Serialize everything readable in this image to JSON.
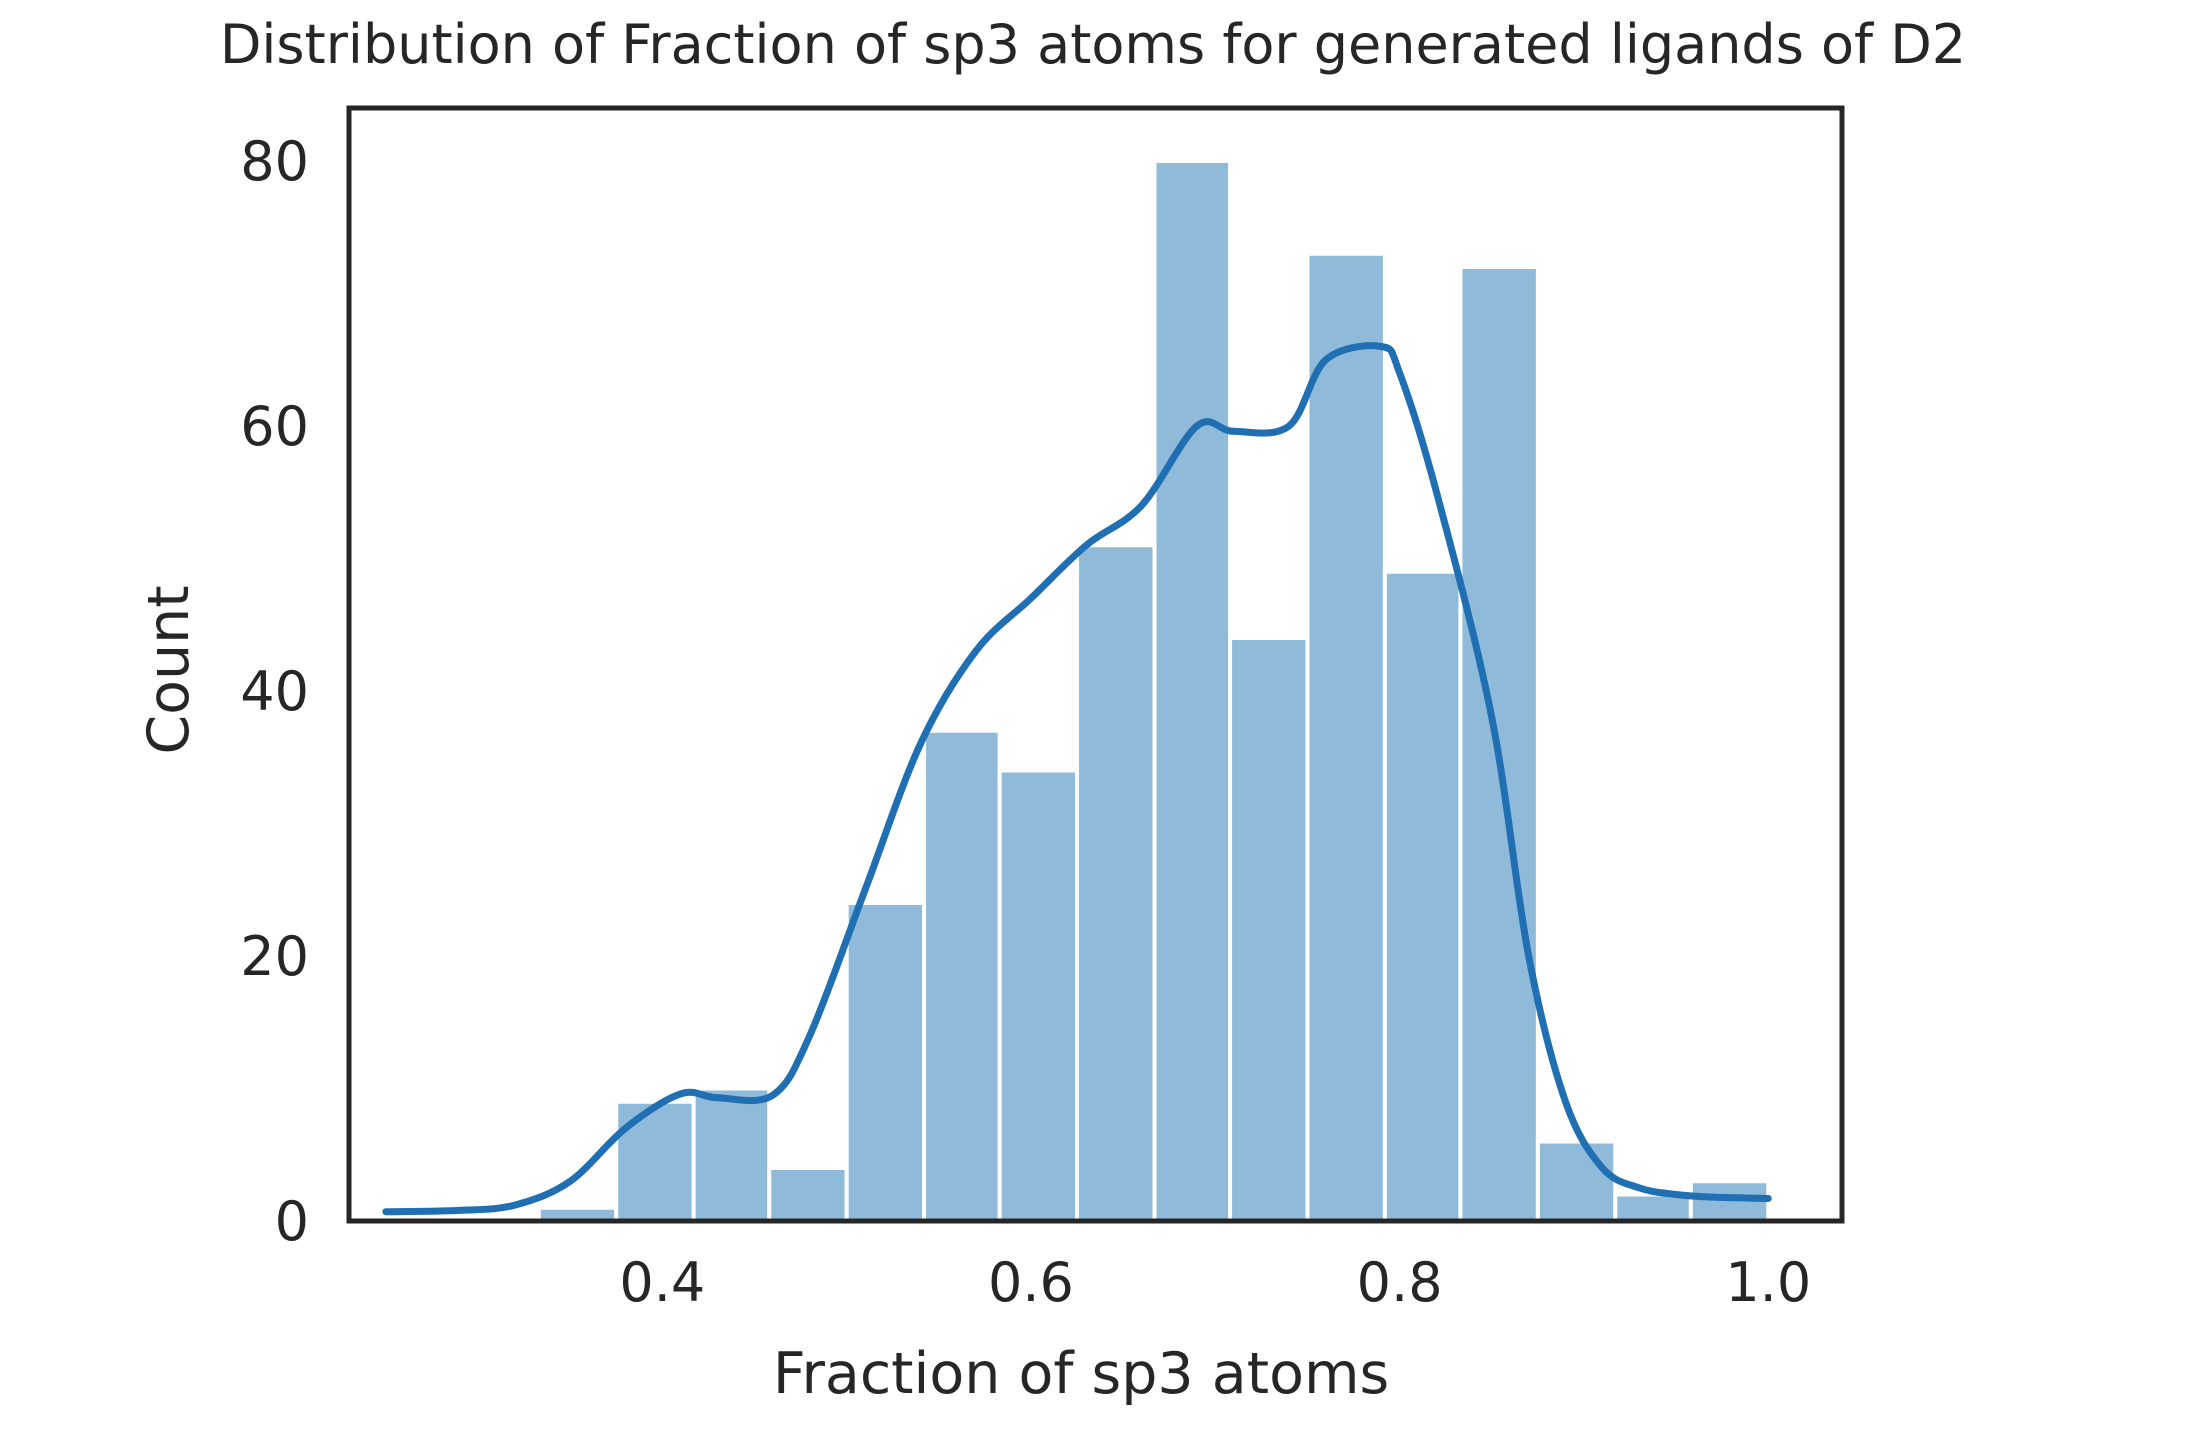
{
  "chart_data": {
    "type": "bar",
    "title": "Distribution of Fraction of sp3 atoms for generated ligands of D2",
    "xlabel": "Fraction of sp3 atoms",
    "ylabel": "Count",
    "xlim": [
      0.23,
      1.04
    ],
    "ylim": [
      0,
      84
    ],
    "xticks": [
      {
        "value": 0.4,
        "label": "0.4"
      },
      {
        "value": 0.6,
        "label": "0.6"
      },
      {
        "value": 0.8,
        "label": "0.8"
      },
      {
        "value": 1.0,
        "label": "1.0"
      }
    ],
    "yticks": [
      {
        "value": 0,
        "label": "0"
      },
      {
        "value": 20,
        "label": "20"
      },
      {
        "value": 40,
        "label": "40"
      },
      {
        "value": 60,
        "label": "60"
      },
      {
        "value": 80,
        "label": "80"
      }
    ],
    "bins": [
      {
        "x0": 0.25,
        "x1": 0.292,
        "count": 0
      },
      {
        "x0": 0.292,
        "x1": 0.333,
        "count": 0
      },
      {
        "x0": 0.333,
        "x1": 0.375,
        "count": 1
      },
      {
        "x0": 0.375,
        "x1": 0.417,
        "count": 9
      },
      {
        "x0": 0.417,
        "x1": 0.458,
        "count": 10
      },
      {
        "x0": 0.458,
        "x1": 0.5,
        "count": 4
      },
      {
        "x0": 0.5,
        "x1": 0.542,
        "count": 24
      },
      {
        "x0": 0.542,
        "x1": 0.583,
        "count": 37
      },
      {
        "x0": 0.583,
        "x1": 0.625,
        "count": 34
      },
      {
        "x0": 0.625,
        "x1": 0.667,
        "count": 51
      },
      {
        "x0": 0.667,
        "x1": 0.708,
        "count": 80
      },
      {
        "x0": 0.708,
        "x1": 0.75,
        "count": 44
      },
      {
        "x0": 0.75,
        "x1": 0.792,
        "count": 73
      },
      {
        "x0": 0.792,
        "x1": 0.833,
        "count": 49
      },
      {
        "x0": 0.833,
        "x1": 0.875,
        "count": 72
      },
      {
        "x0": 0.875,
        "x1": 0.917,
        "count": 6
      },
      {
        "x0": 0.917,
        "x1": 0.958,
        "count": 2
      },
      {
        "x0": 0.958,
        "x1": 1.0,
        "count": 3
      }
    ],
    "kde": {
      "x": [
        0.25,
        0.29,
        0.32,
        0.35,
        0.38,
        0.41,
        0.43,
        0.46,
        0.48,
        0.51,
        0.54,
        0.57,
        0.6,
        0.63,
        0.66,
        0.69,
        0.71,
        0.74,
        0.76,
        0.79,
        0.8,
        0.82,
        0.85,
        0.87,
        0.89,
        0.91,
        0.93,
        0.95,
        0.97,
        1.0
      ],
      "y": [
        0.7,
        0.8,
        1.2,
        3.0,
        7.0,
        9.6,
        9.3,
        9.5,
        14.0,
        25.0,
        36.0,
        43.0,
        47.0,
        51.0,
        54.0,
        60.0,
        59.6,
        60.0,
        65.0,
        66.0,
        64.0,
        55.0,
        38.0,
        20.0,
        9.0,
        4.0,
        2.5,
        2.0,
        1.8,
        1.7
      ]
    },
    "colors": {
      "bar_fill": "#8fbad9",
      "kde_line": "#1f6fb2",
      "axes": "#262626",
      "text": "#262626"
    },
    "grid": false,
    "legend": "none"
  }
}
